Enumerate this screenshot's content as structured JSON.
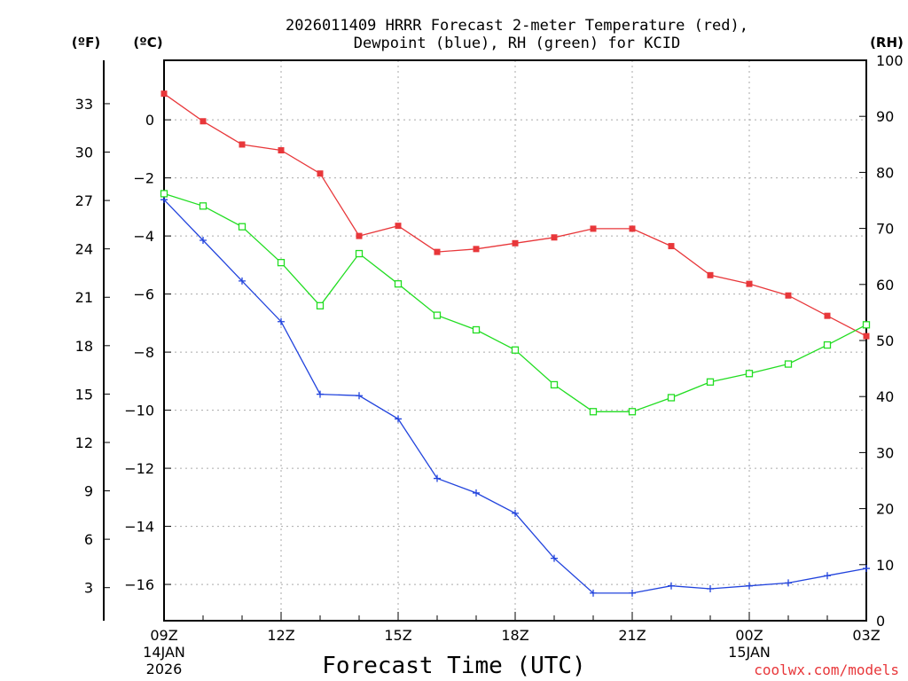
{
  "chart_data": {
    "type": "line",
    "title_line1": "2026011409 HRRR Forecast 2-meter Temperature (red),",
    "title_line2": "Dewpoint (blue), RH (green) for KCID",
    "xlabel": "Forecast Time (UTC)",
    "credit": "coolwx.com/models",
    "axis_units": {
      "fahrenheit": "(ºF)",
      "celsius": "(ºC)",
      "rh": "(RH)"
    },
    "x_hours": [
      9,
      10,
      11,
      12,
      13,
      14,
      15,
      16,
      17,
      18,
      19,
      20,
      21,
      22,
      23,
      24,
      25,
      26,
      27
    ],
    "x_ticks": [
      {
        "hour": 9,
        "label": "09Z",
        "sub1": "14JAN",
        "sub2": "2026"
      },
      {
        "hour": 12,
        "label": "12Z",
        "sub1": "",
        "sub2": ""
      },
      {
        "hour": 15,
        "label": "15Z",
        "sub1": "",
        "sub2": ""
      },
      {
        "hour": 18,
        "label": "18Z",
        "sub1": "",
        "sub2": ""
      },
      {
        "hour": 21,
        "label": "21Z",
        "sub1": "",
        "sub2": ""
      },
      {
        "hour": 24,
        "label": "00Z",
        "sub1": "15JAN",
        "sub2": ""
      },
      {
        "hour": 27,
        "label": "03Z",
        "sub1": "",
        "sub2": ""
      }
    ],
    "xlim": [
      9,
      27
    ],
    "ylim_celsius": [
      -17.25,
      2.05
    ],
    "ylim_rh": [
      0,
      100
    ],
    "celsius_ticks": [
      0,
      -2,
      -4,
      -6,
      -8,
      -10,
      -12,
      -14,
      -16
    ],
    "fahrenheit_ticks": [
      33,
      30,
      27,
      24,
      21,
      18,
      15,
      12,
      9,
      6,
      3
    ],
    "rh_ticks": [
      0,
      10,
      20,
      30,
      40,
      50,
      60,
      70,
      80,
      90,
      100
    ],
    "series": [
      {
        "name": "Temperature (°C)",
        "color": "#e8373a",
        "marker": "filled-square",
        "axis": "celsius",
        "values": [
          0.9,
          -0.05,
          -0.85,
          -1.05,
          -1.85,
          -4.0,
          -3.65,
          -4.55,
          -4.45,
          -4.25,
          -4.05,
          -3.75,
          -3.75,
          -4.35,
          -5.35,
          -5.65,
          -6.05,
          -6.75,
          -7.45
        ]
      },
      {
        "name": "Dewpoint (°C)",
        "color": "#2244dd",
        "marker": "plus",
        "axis": "celsius",
        "values": [
          -2.75,
          -4.15,
          -5.55,
          -6.95,
          -9.45,
          -9.5,
          -10.3,
          -12.35,
          -12.85,
          -13.55,
          -15.1,
          -16.3,
          -16.3,
          -16.05,
          -16.15,
          -16.05,
          -15.95,
          -15.7,
          -15.45
        ]
      },
      {
        "name": "Relative Humidity (%)",
        "color": "#22dd22",
        "marker": "open-square",
        "axis": "rh",
        "values": [
          76.2,
          74.0,
          70.3,
          63.9,
          56.2,
          65.5,
          60.1,
          54.5,
          51.9,
          48.3,
          42.1,
          37.3,
          37.3,
          39.8,
          42.6,
          44.1,
          45.8,
          49.2,
          52.8
        ]
      }
    ]
  }
}
